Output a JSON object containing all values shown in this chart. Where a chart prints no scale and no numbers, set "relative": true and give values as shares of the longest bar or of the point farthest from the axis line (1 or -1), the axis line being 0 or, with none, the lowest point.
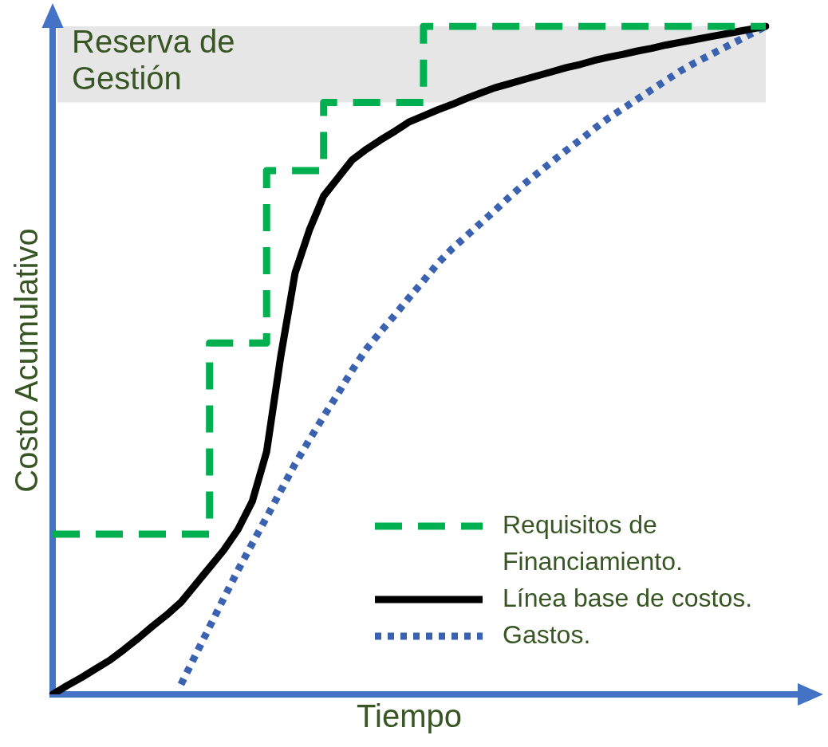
{
  "chart_data": {
    "type": "line",
    "relative": true,
    "xlabel": "Tiempo",
    "ylabel": "Costo Acumulativo",
    "grid": false,
    "legend": "bottom right",
    "marker": "none",
    "categories": [
      null,
      null,
      null,
      null,
      null,
      null,
      null,
      null,
      null,
      null,
      null,
      null,
      null,
      null,
      null,
      null,
      null,
      null,
      null,
      null,
      null,
      null,
      null,
      null,
      null,
      null,
      null,
      null,
      null,
      null,
      null,
      null,
      null,
      null,
      null,
      null,
      null,
      null,
      null,
      null,
      null,
      null,
      null,
      null,
      null,
      null,
      null,
      null,
      null,
      null,
      null
    ],
    "series": [
      {
        "name": "Requisitos de Financiamiento.",
        "type": "step",
        "color": "#00b050",
        "line_style": "dashed",
        "values": [
          0.24,
          0.24,
          0.24,
          0.24,
          0.24,
          0.24,
          0.24,
          0.24,
          0.24,
          0.24,
          0.24,
          0.24,
          0.526,
          0.526,
          0.526,
          0.526,
          0.784,
          0.784,
          0.784,
          0.784,
          0.886,
          0.886,
          0.886,
          0.886,
          0.886,
          0.886,
          0.886,
          1,
          1,
          1,
          1,
          1,
          1,
          1,
          1,
          1,
          1,
          1,
          1,
          1,
          1,
          1,
          1,
          1,
          1,
          1,
          1,
          1,
          1,
          1,
          1
        ]
      },
      {
        "name": "Línea base de costos.",
        "color": "#000000",
        "line_style": "solid",
        "values": [
          0,
          0.013,
          0.025,
          0.038,
          0.051,
          0.067,
          0.084,
          0.102,
          0.119,
          0.138,
          0.164,
          0.19,
          0.216,
          0.247,
          0.289,
          0.363,
          0.507,
          0.631,
          0.695,
          0.746,
          0.773,
          0.8,
          0.816,
          0.83,
          0.843,
          0.857,
          0.866,
          0.875,
          0.883,
          0.892,
          0.9,
          0.908,
          0.914,
          0.92,
          0.926,
          0.932,
          0.938,
          0.943,
          0.949,
          0.954,
          0.958,
          0.963,
          0.967,
          0.972,
          0.976,
          0.98,
          0.984,
          0.988,
          0.992,
          0.996,
          1
        ]
      },
      {
        "name": "Gastos.",
        "color": "#3a62b0",
        "line_style": "dotted",
        "values": [
          null,
          null,
          null,
          null,
          null,
          null,
          null,
          null,
          null,
          0.015,
          0.058,
          0.101,
          0.144,
          0.186,
          0.226,
          0.265,
          0.305,
          0.345,
          0.381,
          0.416,
          0.45,
          0.485,
          0.517,
          0.543,
          0.568,
          0.594,
          0.619,
          0.645,
          0.667,
          0.686,
          0.705,
          0.724,
          0.744,
          0.763,
          0.78,
          0.797,
          0.814,
          0.83,
          0.847,
          0.863,
          0.877,
          0.891,
          0.905,
          0.919,
          0.933,
          0.945,
          0.956,
          0.967,
          0.978,
          0.989,
          1
        ]
      }
    ],
    "bands": [
      {
        "axis": "y",
        "from": 0.886,
        "to": 1,
        "label": "Reserva de Gestión",
        "color": "#e6e6e6"
      }
    ]
  }
}
